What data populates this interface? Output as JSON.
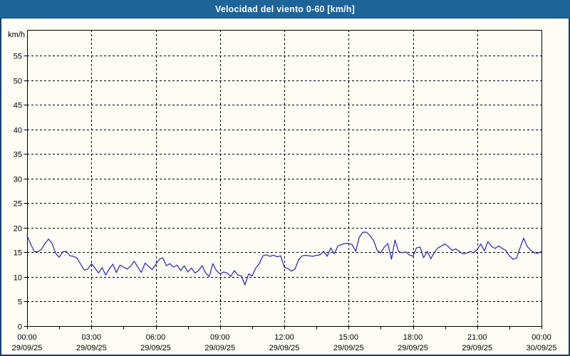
{
  "window": {
    "title": "Velocidad del viento 0-60 [km/h]"
  },
  "colors": {
    "titlebar_bg": "#1e6499",
    "title_text": "#ffffff",
    "page_border": "#1b3c6e",
    "page_bg": "#fdfdf6",
    "axis": "#000000",
    "grid": "#000000",
    "line": "#2222c2"
  },
  "chart_data": {
    "type": "line",
    "title": "Velocidad del viento 0-60 [km/h]",
    "ylabel": "km/h",
    "xlabel": "",
    "ylim": [
      0,
      60
    ],
    "grid": "dashed",
    "legend": "none",
    "y_tick_values": [
      0,
      5,
      10,
      15,
      20,
      25,
      30,
      35,
      40,
      45,
      50,
      55
    ],
    "x_major_interval_minutes": 180,
    "x_minor_tick_minutes": 90,
    "x_ticks": [
      {
        "time": "00:00",
        "date": "29/09/25"
      },
      {
        "time": "03:00",
        "date": "29/09/25"
      },
      {
        "time": "06:00",
        "date": "29/09/25"
      },
      {
        "time": "09:00",
        "date": "29/09/25"
      },
      {
        "time": "12:00",
        "date": "29/09/25"
      },
      {
        "time": "15:00",
        "date": "29/09/25"
      },
      {
        "time": "18:00",
        "date": "29/09/25"
      },
      {
        "time": "21:00",
        "date": "29/09/25"
      },
      {
        "time": "00:00",
        "date": "30/09/25"
      }
    ],
    "series": [
      {
        "name": "Velocidad del viento",
        "x_start_minute": 0,
        "x_step_minutes": 10,
        "values": [
          18.4,
          16.7,
          15.2,
          15.1,
          15.6,
          16.8,
          17.7,
          16.8,
          14.8,
          14.0,
          15.1,
          15.2,
          14.3,
          14.2,
          13.8,
          12.6,
          11.4,
          11.6,
          12.7,
          11.8,
          10.8,
          11.9,
          10.4,
          11.6,
          12.6,
          10.9,
          12.4,
          12.0,
          11.6,
          12.2,
          13.2,
          12.0,
          10.9,
          12.8,
          12.2,
          11.5,
          12.5,
          13.6,
          13.9,
          12.3,
          12.7,
          12.0,
          12.4,
          11.3,
          12.3,
          11.0,
          11.8,
          10.8,
          11.3,
          12.3,
          10.8,
          10.1,
          12.7,
          11.3,
          10.6,
          11.0,
          10.8,
          10.1,
          11.3,
          10.4,
          10.2,
          8.4,
          10.6,
          10.2,
          11.8,
          12.7,
          14.3,
          14.5,
          14.2,
          14.4,
          14.1,
          14.3,
          12.0,
          11.7,
          11.2,
          11.6,
          13.5,
          14.3,
          14.4,
          14.3,
          14.2,
          14.4,
          14.5,
          15.2,
          14.2,
          15.9,
          14.7,
          16.3,
          16.6,
          16.8,
          16.8,
          16.6,
          15.2,
          18.1,
          19.1,
          19.1,
          18.4,
          17.4,
          15.4,
          14.9,
          16.1,
          16.8,
          13.6,
          17.5,
          15.2,
          14.9,
          15.1,
          14.5,
          14.2,
          15.9,
          16.1,
          13.9,
          15.2,
          13.7,
          15.0,
          15.9,
          16.3,
          16.7,
          16.1,
          15.4,
          15.7,
          15.2,
          14.7,
          14.8,
          15.2,
          14.9,
          15.6,
          16.7,
          15.3,
          17.2,
          16.2,
          15.8,
          16.3,
          15.8,
          15.4,
          14.3,
          13.6,
          13.8,
          15.9,
          17.9,
          16.2,
          15.4,
          14.9,
          14.8,
          15.2
        ]
      }
    ]
  }
}
